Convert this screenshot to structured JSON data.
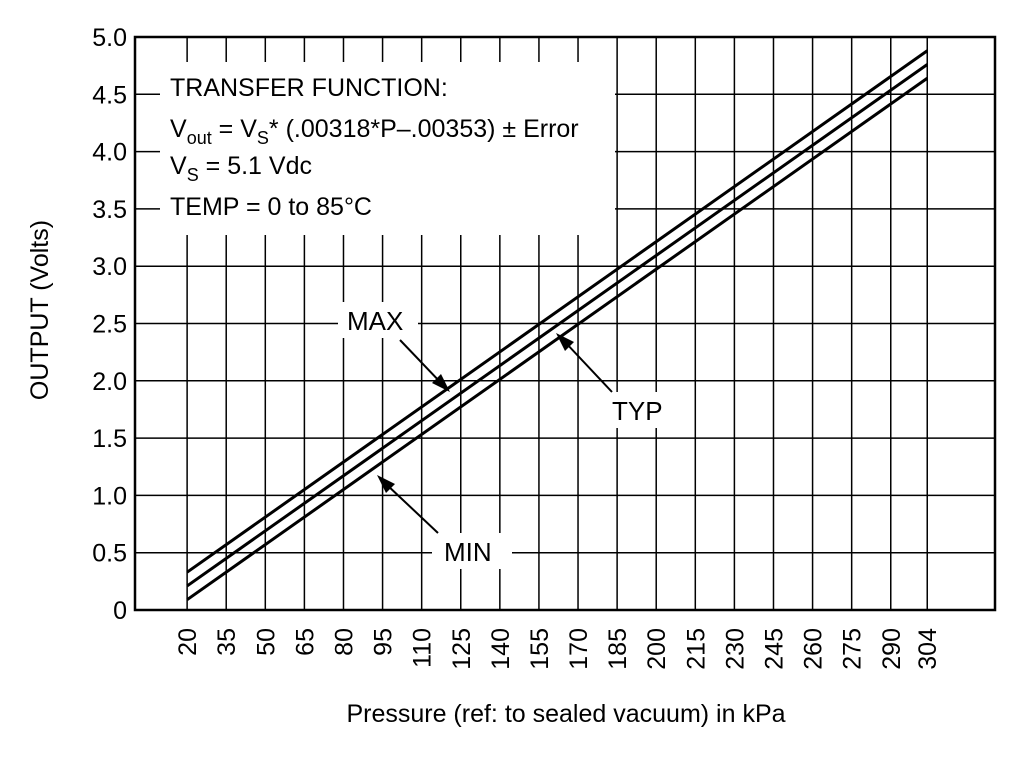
{
  "chart_data": {
    "type": "line",
    "xlabel": "Pressure (ref: to sealed vacuum) in kPa",
    "ylabel": "OUTPUT (Volts)",
    "x_ticks": [
      "20",
      "35",
      "50",
      "65",
      "80",
      "95",
      "110",
      "125",
      "140",
      "155",
      "170",
      "185",
      "200",
      "215",
      "230",
      "245",
      "260",
      "275",
      "290",
      "304"
    ],
    "y_ticks": [
      "0",
      "0.5",
      "1.0",
      "1.5",
      "2.0",
      "2.5",
      "3.0",
      "3.5",
      "4.0",
      "4.5",
      "5.0"
    ],
    "xlim": [
      0,
      330
    ],
    "ylim": [
      0,
      5.0
    ],
    "grid": true,
    "series": [
      {
        "name": "MAX",
        "x": [
          20,
          304
        ],
        "y": [
          0.33,
          4.88
        ]
      },
      {
        "name": "TYP",
        "x": [
          20,
          304
        ],
        "y": [
          0.21,
          4.76
        ]
      },
      {
        "name": "MIN",
        "x": [
          20,
          304
        ],
        "y": [
          0.09,
          4.64
        ]
      }
    ],
    "annotation": {
      "line1": "TRANSFER FUNCTION:",
      "vout_v": "V",
      "vout_sub": "out",
      "vout_eq": " = V",
      "vout_s_sub": "S",
      "vout_formula": "* (.00318*P–.00353) ± Error",
      "vs_v": "V",
      "vs_sub": "S",
      "vs_value": " = 5.1 Vdc",
      "temp": "TEMP = 0 to 85°C"
    }
  }
}
